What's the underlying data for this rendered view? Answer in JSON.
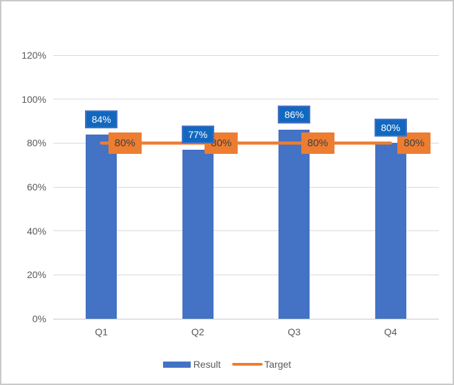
{
  "chart_data": {
    "type": "bar",
    "categories": [
      "Q1",
      "Q2",
      "Q3",
      "Q4"
    ],
    "series": [
      {
        "name": "Result",
        "type": "bar",
        "values": [
          84,
          77,
          86,
          80
        ],
        "labels": [
          "84%",
          "77%",
          "86%",
          "80%"
        ],
        "color": "#4472C4",
        "label_fill": "#1268BE",
        "label_border": "#4472C4",
        "label_text_color": "#FFFFFF"
      },
      {
        "name": "Target",
        "type": "line",
        "values": [
          80,
          80,
          80,
          80
        ],
        "labels": [
          "80%",
          "80%",
          "80%",
          "80%"
        ],
        "color": "#ED7D31",
        "label_fill": "#ED7D31",
        "label_text_color": "#404040"
      }
    ],
    "ylim": [
      0,
      120
    ],
    "ytick_step": 20,
    "ytick_labels": [
      "0%",
      "20%",
      "40%",
      "60%",
      "80%",
      "100%",
      "120%"
    ],
    "grid": true,
    "legend_position": "bottom",
    "colors": {
      "grid": "#D9D9D9",
      "axis": "#C8C8C8",
      "tick_text": "#595959",
      "background": "#FFFFFF",
      "frame_border": "#C9C9C9"
    }
  }
}
